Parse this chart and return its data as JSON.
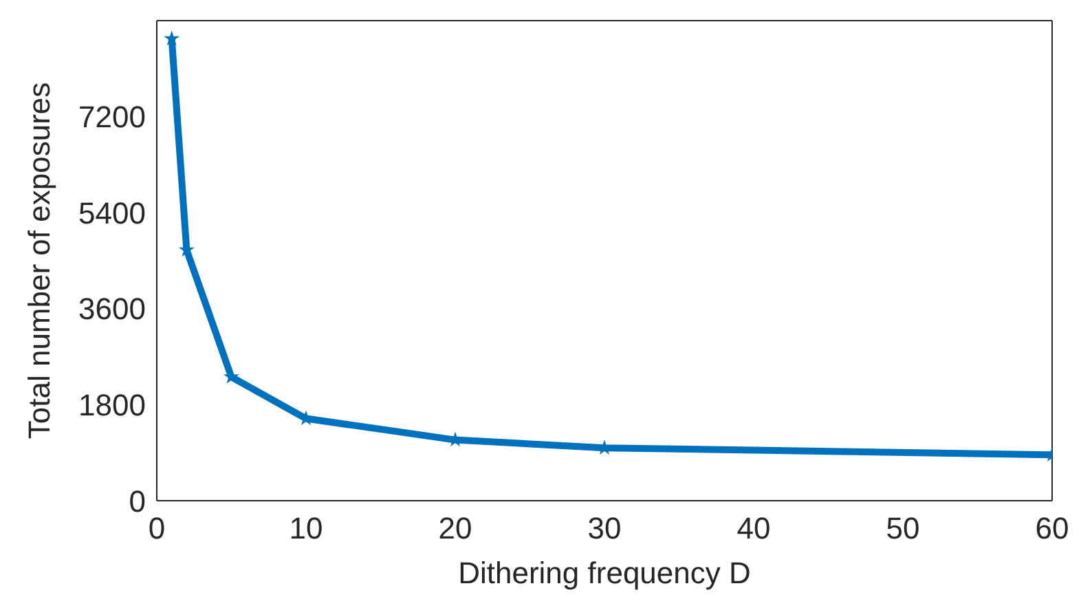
{
  "chart_data": {
    "type": "line",
    "xlabel": "Dithering frequency D",
    "ylabel": "Total number of exposures",
    "x": [
      1,
      2,
      5,
      10,
      20,
      30,
      60
    ],
    "series": [
      {
        "color": "#0072bd",
        "values": [
          8660,
          4700,
          2320,
          1540,
          1140,
          990,
          860
        ]
      }
    ],
    "xlim": [
      0,
      60
    ],
    "xticks": [
      0,
      10,
      20,
      30,
      40,
      50,
      60
    ],
    "ylim": [
      0,
      9000
    ],
    "yticks": [
      0,
      1800,
      3600,
      5400,
      7200
    ],
    "grid": false,
    "legend": false,
    "marker": "star",
    "line_style": "solid"
  }
}
